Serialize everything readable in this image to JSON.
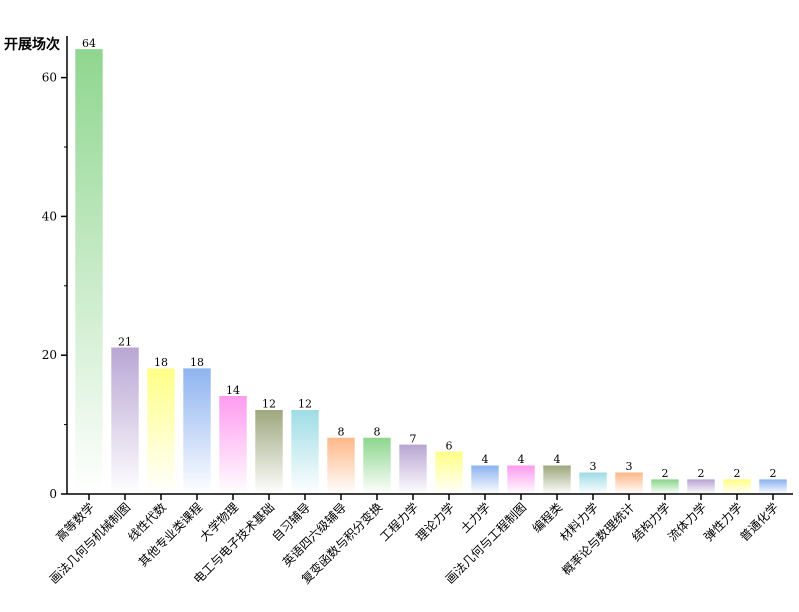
{
  "chart_data": {
    "type": "bar",
    "title": "",
    "ylabel": "开展场次",
    "xlabel": "",
    "ylim": [
      0,
      66
    ],
    "yticks": [
      0,
      20,
      40,
      60
    ],
    "grid": false,
    "categories": [
      "高等数学",
      "画法几何与机械制图",
      "线性代数",
      "其他专业类课程",
      "大学物理",
      "电工与电子技术基础",
      "自习辅导",
      "英语四六级辅导",
      "复变函数与积分变换",
      "工程力学",
      "理论力学",
      "土力学",
      "画法几何与工程制图",
      "编程类",
      "材料力学",
      "概率论与数理统计",
      "结构力学",
      "流体力学",
      "弹性力学",
      "普通化学"
    ],
    "values": [
      64,
      21,
      18,
      18,
      14,
      12,
      12,
      8,
      8,
      7,
      6,
      4,
      4,
      4,
      3,
      3,
      2,
      2,
      2,
      2
    ],
    "colors": [
      "#8fd68f",
      "#b9a6d4",
      "#ffff88",
      "#8fb4f0",
      "#ff9cf0",
      "#9fa87f",
      "#9fdde6",
      "#ffb98a",
      "#8fd68f",
      "#b9a6d4",
      "#ffff88",
      "#8fb4f0",
      "#ff9cf0",
      "#9fa87f",
      "#9fdde6",
      "#ffb98a",
      "#8fd68f",
      "#b9a6d4",
      "#ffff88",
      "#8fb4f0"
    ]
  }
}
